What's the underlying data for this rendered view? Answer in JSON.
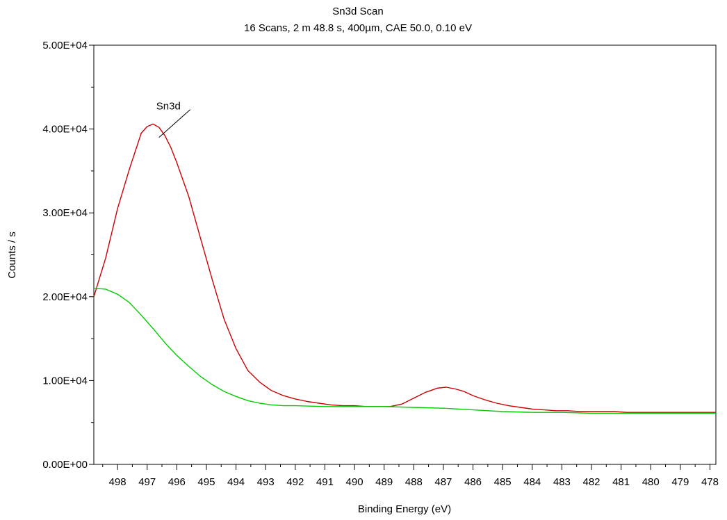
{
  "chart_data": {
    "type": "line",
    "title": "Sn3d Scan",
    "subtitle": "16 Scans,  2 m 48.8 s,  400µm,  CAE 50.0,  0.10 eV",
    "xlabel": "Binding Energy (eV)",
    "ylabel": "Counts / s",
    "x_reversed": true,
    "xlim": [
      498.8,
      477.8
    ],
    "ylim": [
      0,
      50000
    ],
    "x_ticks": [
      498,
      497,
      496,
      495,
      494,
      493,
      492,
      491,
      490,
      489,
      488,
      487,
      486,
      485,
      484,
      483,
      482,
      481,
      480,
      479,
      478
    ],
    "x_tick_labels": [
      "498",
      "497",
      "496",
      "495",
      "494",
      "493",
      "492",
      "491",
      "490",
      "489",
      "488",
      "487",
      "486",
      "485",
      "484",
      "483",
      "482",
      "481",
      "480",
      "479",
      "478"
    ],
    "y_ticks": [
      0,
      10000,
      20000,
      30000,
      40000,
      50000
    ],
    "y_tick_labels": [
      "0.00E+00",
      "1.00E+04",
      "2.00E+04",
      "3.00E+04",
      "4.00E+04",
      "5.00E+04"
    ],
    "grid": false,
    "annotation": {
      "text": "Sn3d",
      "x": 496.6,
      "y": 39000
    },
    "series": [
      {
        "color": "#cc0000",
        "x": [
          498.8,
          498.4,
          498.0,
          497.6,
          497.2,
          497.0,
          496.8,
          496.6,
          496.4,
          496.2,
          496.0,
          495.6,
          495.2,
          494.8,
          494.4,
          494.0,
          493.6,
          493.2,
          492.8,
          492.4,
          492.0,
          491.6,
          491.2,
          490.8,
          490.4,
          490.0,
          489.6,
          489.2,
          488.8,
          488.4,
          488.0,
          487.6,
          487.2,
          486.9,
          486.6,
          486.3,
          486.0,
          485.6,
          485.2,
          484.8,
          484.4,
          484.0,
          483.6,
          483.2,
          482.8,
          482.4,
          482.0,
          481.6,
          481.2,
          480.8,
          480.4,
          480.0,
          479.6,
          479.2,
          478.8,
          478.4,
          478.0,
          477.8
        ],
        "y": [
          20000,
          24600,
          30500,
          35200,
          39500,
          40300,
          40600,
          40200,
          39200,
          37800,
          36000,
          32000,
          27000,
          22000,
          17300,
          13800,
          11200,
          9800,
          8800,
          8200,
          7800,
          7500,
          7300,
          7100,
          7000,
          7000,
          6900,
          6900,
          6900,
          7200,
          7900,
          8600,
          9100,
          9200,
          9000,
          8700,
          8200,
          7700,
          7300,
          7000,
          6800,
          6600,
          6500,
          6400,
          6400,
          6300,
          6300,
          6300,
          6300,
          6200,
          6200,
          6200,
          6200,
          6200,
          6200,
          6200,
          6200,
          6200
        ]
      },
      {
        "color": "#00cc00",
        "x": [
          498.8,
          498.4,
          498.0,
          497.6,
          497.2,
          496.8,
          496.4,
          496.0,
          495.6,
          495.2,
          494.8,
          494.4,
          494.0,
          493.6,
          493.2,
          492.8,
          492.4,
          492.0,
          491.0,
          490.0,
          489.0,
          488.0,
          487.0,
          486.0,
          485.0,
          484.0,
          483.0,
          482.0,
          481.0,
          480.0,
          479.0,
          478.0,
          477.8
        ],
        "y": [
          21000,
          20900,
          20300,
          19300,
          17800,
          16200,
          14500,
          13000,
          11700,
          10500,
          9500,
          8700,
          8100,
          7600,
          7300,
          7100,
          7000,
          7000,
          6900,
          6900,
          6900,
          6800,
          6700,
          6500,
          6300,
          6200,
          6200,
          6100,
          6100,
          6100,
          6100,
          6100,
          6100
        ]
      }
    ]
  }
}
